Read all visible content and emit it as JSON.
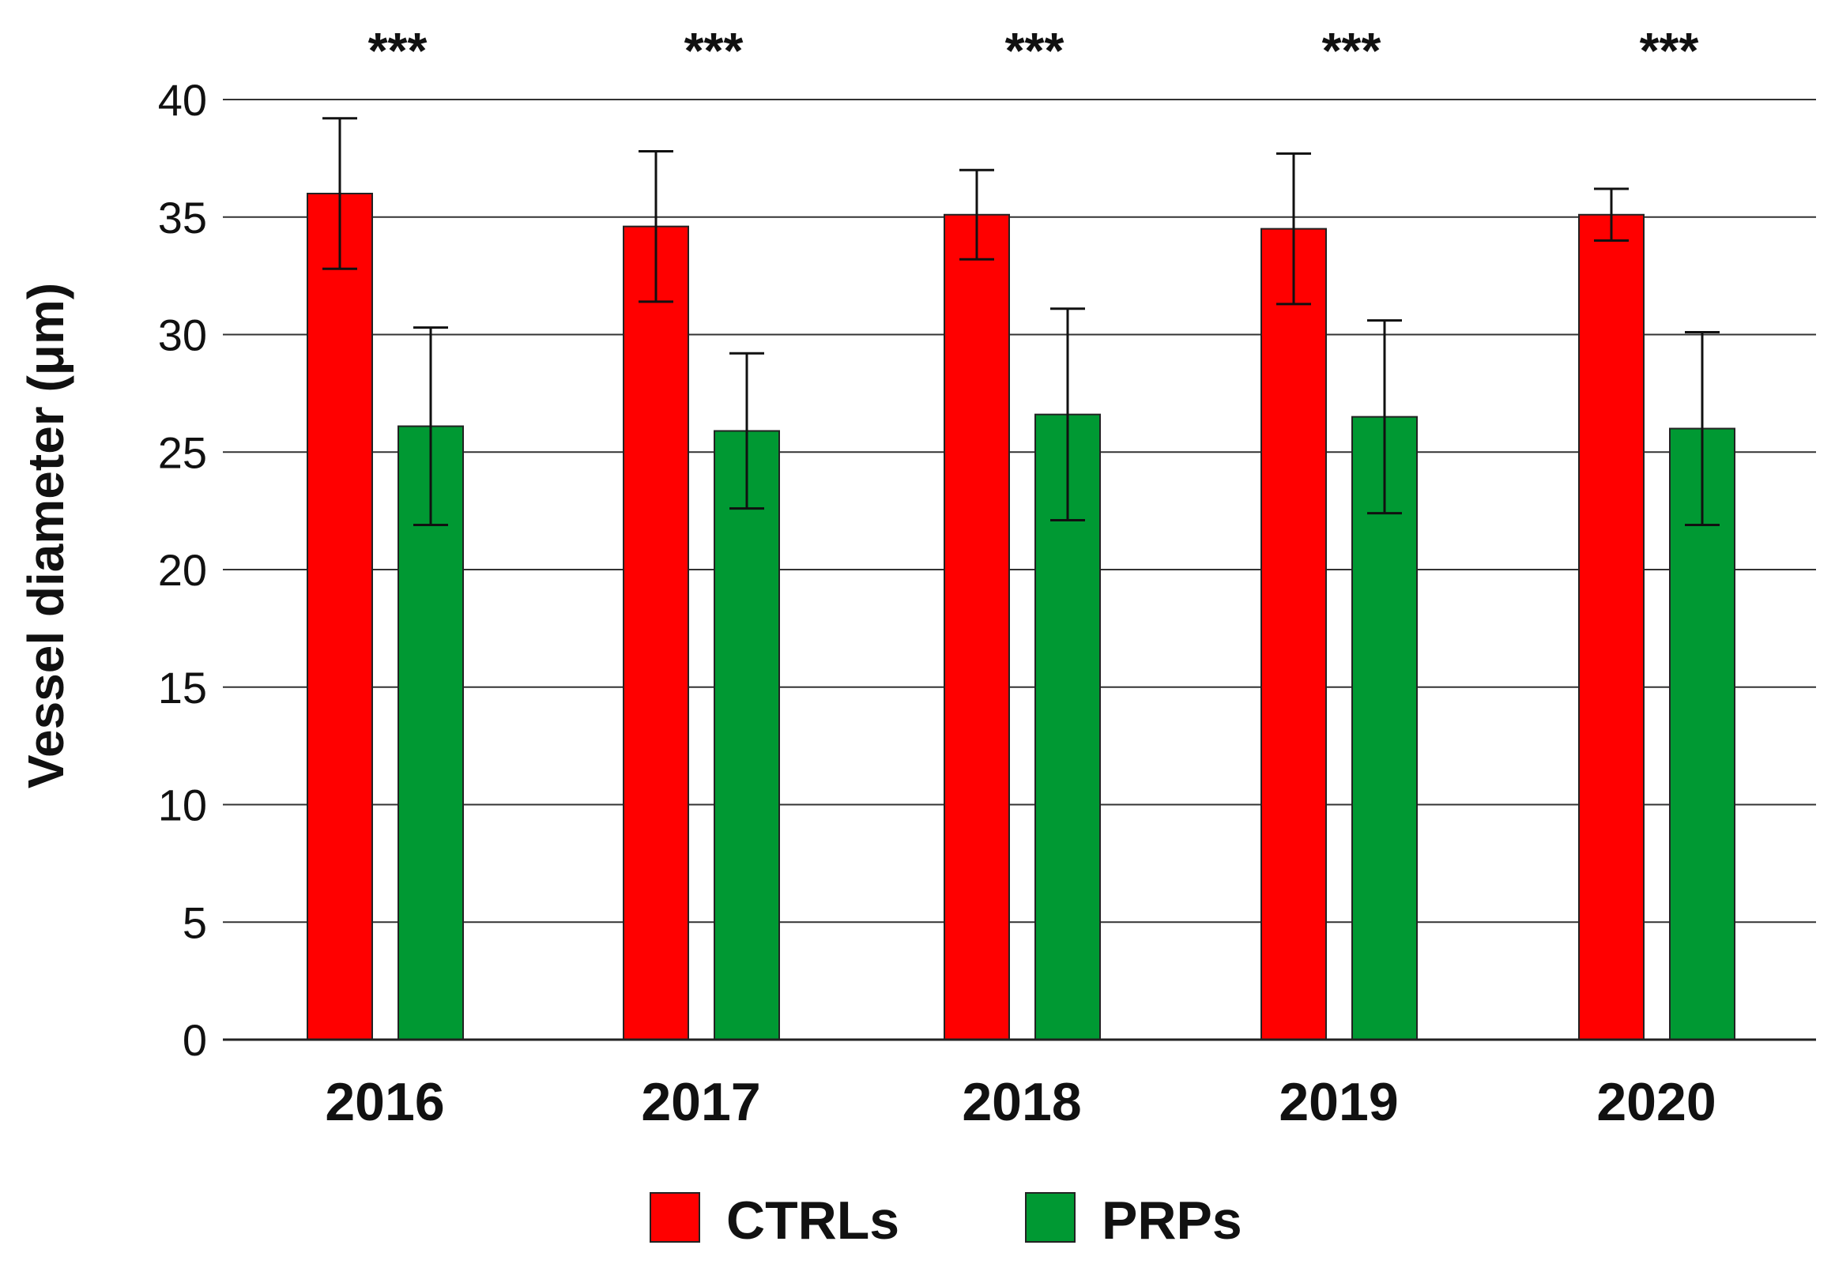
{
  "chart_data": {
    "type": "bar",
    "title": "",
    "xlabel": "",
    "ylabel": "Vessel diameter (μm)",
    "ylim": [
      0,
      40
    ],
    "yticks": [
      "0",
      "5",
      "10",
      "15",
      "20",
      "25",
      "30",
      "35",
      "40"
    ],
    "grid": true,
    "legend_position": "bottom-center",
    "categories": [
      "2016",
      "2017",
      "2018",
      "2019",
      "2020"
    ],
    "significance": [
      "***",
      "***",
      "***",
      "***",
      "***"
    ],
    "series": [
      {
        "name": "CTRLs",
        "color": "#ff0000",
        "values": [
          36.0,
          34.6,
          35.1,
          34.5,
          35.1
        ],
        "errors": [
          3.2,
          3.2,
          1.9,
          3.2,
          1.1
        ]
      },
      {
        "name": "PRPs",
        "color": "#009933",
        "values": [
          26.1,
          25.9,
          26.6,
          26.5,
          26.0
        ],
        "errors": [
          4.2,
          3.3,
          4.5,
          4.1,
          4.1
        ]
      }
    ]
  }
}
